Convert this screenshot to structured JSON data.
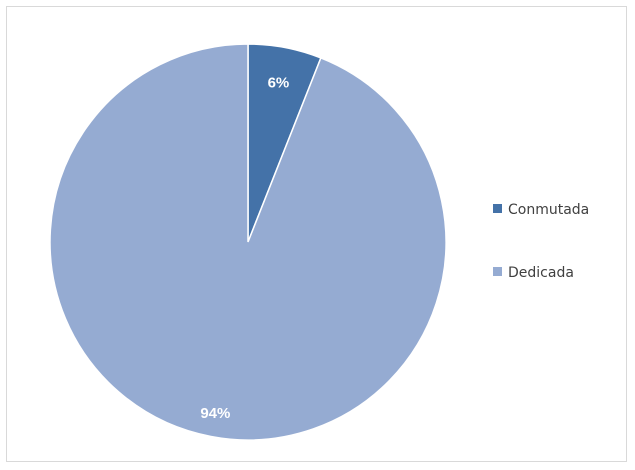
{
  "chart_data": {
    "type": "pie",
    "title": "",
    "categories": [
      "Conmutada",
      "Dedicada"
    ],
    "values": [
      6,
      94
    ],
    "data_labels": [
      "6%",
      "94%"
    ],
    "colors": [
      "#4472a8",
      "#95abd2"
    ],
    "legend": {
      "position": "right",
      "entries": [
        "Conmutada",
        "Dedicada"
      ]
    }
  }
}
